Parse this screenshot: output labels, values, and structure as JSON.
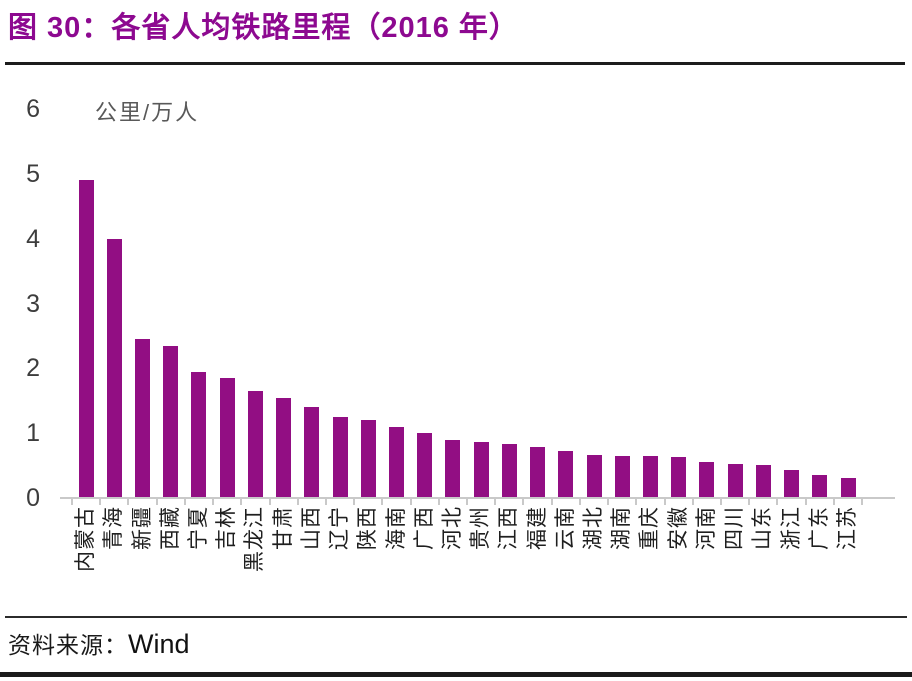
{
  "header": {
    "title": "图 30：各省人均铁路里程（2016 年）"
  },
  "chart_data": {
    "type": "bar",
    "title": "各省人均铁路里程（2016 年）",
    "ylabel": "公里/万人",
    "xlabel": "",
    "categories": [
      "内蒙古",
      "青海",
      "新疆",
      "西藏",
      "宁夏",
      "吉林",
      "黑龙江",
      "甘肃",
      "山西",
      "辽宁",
      "陕西",
      "海南",
      "广西",
      "河北",
      "贵州",
      "江西",
      "福建",
      "云南",
      "湖北",
      "湖南",
      "重庆",
      "安徽",
      "河南",
      "四川",
      "山东",
      "浙江",
      "广东",
      "江苏"
    ],
    "values": [
      4.9,
      4.0,
      2.45,
      2.35,
      1.95,
      1.85,
      1.65,
      1.55,
      1.4,
      1.25,
      1.2,
      1.1,
      1.0,
      0.9,
      0.87,
      0.83,
      0.78,
      0.72,
      0.67,
      0.65,
      0.65,
      0.63,
      0.55,
      0.53,
      0.51,
      0.43,
      0.35,
      0.31
    ],
    "ylim": [
      0,
      6
    ],
    "yticks": [
      0,
      1,
      2,
      3,
      4,
      5,
      6
    ],
    "bar_color": "#920E83",
    "axis_color": "#c9c9c9",
    "grid": false,
    "legend": false
  },
  "footer": {
    "source_label": "资料来源：",
    "source_value": "Wind"
  }
}
